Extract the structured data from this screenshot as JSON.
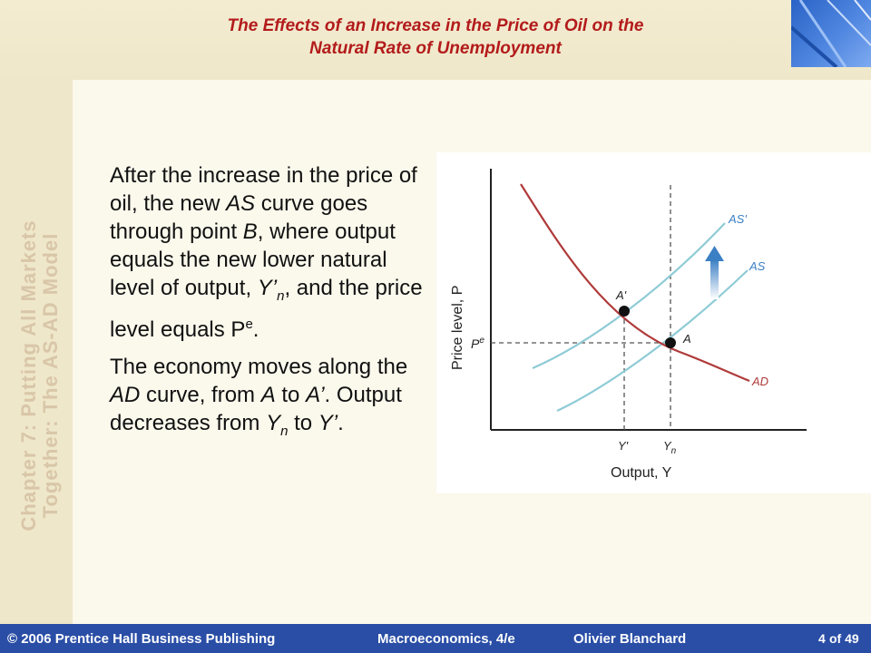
{
  "slide": {
    "title_line1": "The Effects of an Increase in the Price of Oil on the",
    "title_line2": "Natural Rate of Unemployment",
    "side_line1": "Chapter 7: Putting All Markets",
    "side_line2": "Together: The AS-AD Model",
    "para1": {
      "a": "After the increase in the price of oil, the new ",
      "as": "AS",
      "b": " curve goes through point ",
      "pb": "B",
      "c": ", where output equals the new lower natural level of output, ",
      "y": "Y’",
      "ysub": "n",
      "d": ", and the price level equals P",
      "sup": "e",
      "e": "."
    },
    "para2": {
      "a": "The economy moves along the ",
      "ad": "AD",
      "b": " curve, from ",
      "pa": "A",
      "c": " to ",
      "pa2": "A’",
      "d": ".  Output decreases from ",
      "y": "Y",
      "ysub": "n",
      "e": " to ",
      "y2": "Y’",
      "f": "."
    }
  },
  "diagram": {
    "ylabel": "Price level, P",
    "xlabel": "Output, Y",
    "pe": "P",
    "pe_sup": "e",
    "label_as_prime": "AS'",
    "label_as": "AS",
    "label_ad": "AD",
    "label_a": "A",
    "label_a_prime": "A'",
    "tick_y_prime": "Y'",
    "tick_yn": "Y",
    "tick_yn_sub": "n",
    "colors": {
      "as": "#8ecbd6",
      "ad": "#b03a3a",
      "arrow": "#3b7fc4",
      "axis": "#222222"
    }
  },
  "footer": {
    "copyright": "© 2006 Prentice Hall Business Publishing",
    "book": "Macroeconomics, 4/e",
    "author": "Olivier Blanchard",
    "page": "4",
    "of": "of 49"
  }
}
